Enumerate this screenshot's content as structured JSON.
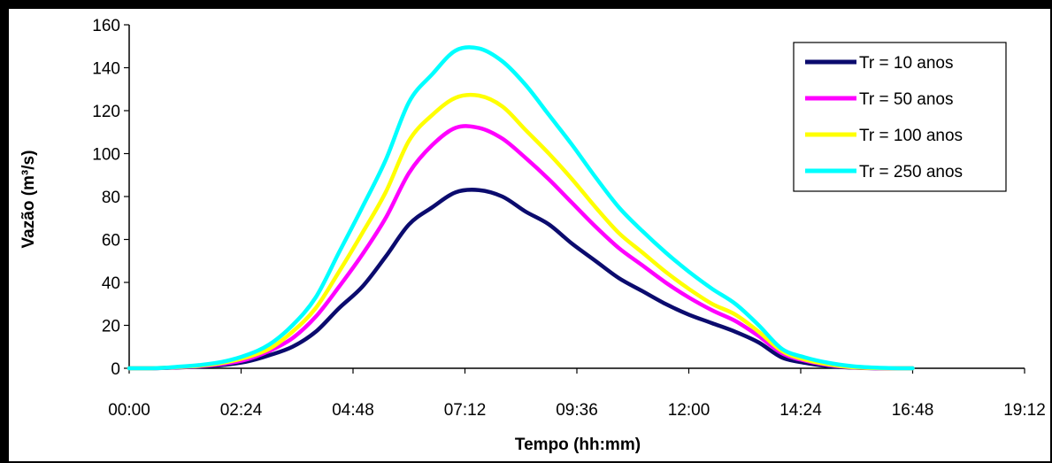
{
  "chart_data": {
    "type": "line",
    "xlabel": "Tempo (hh:mm)",
    "ylabel": "Vazão (m³/s)",
    "xlim": [
      "00:00",
      "19:12"
    ],
    "ylim": [
      0,
      160
    ],
    "x_ticks": [
      "00:00",
      "02:24",
      "04:48",
      "07:12",
      "09:36",
      "12:00",
      "14:24",
      "16:48",
      "19:12"
    ],
    "y_ticks": [
      "0",
      "20",
      "40",
      "60",
      "80",
      "100",
      "120",
      "140",
      "160"
    ],
    "grid": false,
    "legend_position": "top-right",
    "x": [
      "00:00",
      "00:30",
      "01:00",
      "01:30",
      "02:00",
      "02:30",
      "03:00",
      "03:30",
      "04:00",
      "04:30",
      "05:00",
      "05:30",
      "06:00",
      "06:30",
      "07:00",
      "07:30",
      "08:00",
      "08:30",
      "09:00",
      "09:30",
      "10:00",
      "10:30",
      "11:00",
      "11:30",
      "12:00",
      "12:30",
      "13:00",
      "13:30",
      "14:00",
      "14:30",
      "15:00",
      "15:30",
      "16:00",
      "16:30",
      "16:48"
    ],
    "series": [
      {
        "name": "Tr = 10 anos",
        "color": "#0b0b6e",
        "values": [
          0,
          0,
          0.3,
          0.8,
          1.5,
          3,
          6,
          10,
          17,
          28,
          38,
          52,
          67,
          75,
          82,
          83,
          80,
          73,
          67,
          58,
          50,
          42,
          36,
          30,
          25,
          21,
          17,
          12,
          5,
          2.5,
          1,
          0.3,
          0,
          0,
          0
        ]
      },
      {
        "name": "Tr = 50 anos",
        "color": "#ff00ff",
        "values": [
          0,
          0,
          0.4,
          1,
          2,
          4,
          8,
          14,
          24,
          38,
          53,
          70,
          91,
          104,
          112,
          112,
          107,
          98,
          88,
          77,
          66,
          56,
          48,
          40,
          33,
          27,
          22,
          15,
          7,
          3.5,
          1.5,
          0.4,
          0,
          0,
          0
        ]
      },
      {
        "name": "Tr = 100 anos",
        "color": "#ffff00",
        "values": [
          0,
          0,
          0.5,
          1.2,
          2.5,
          5,
          9,
          17,
          28,
          45,
          63,
          82,
          106,
          118,
          126,
          127,
          122,
          111,
          100,
          88,
          75,
          63,
          54,
          45,
          37,
          30,
          25,
          17,
          8,
          4,
          1.8,
          0.5,
          0.1,
          0,
          0
        ]
      },
      {
        "name": "Tr = 250 anos",
        "color": "#00ffff",
        "values": [
          0,
          0,
          0.6,
          1.5,
          3,
          6,
          11,
          20,
          33,
          54,
          75,
          97,
          124,
          137,
          148,
          149,
          143,
          132,
          118,
          104,
          89,
          75,
          64,
          54,
          45,
          37,
          30,
          20,
          9,
          5,
          2.5,
          1,
          0.3,
          0,
          0
        ]
      }
    ]
  }
}
